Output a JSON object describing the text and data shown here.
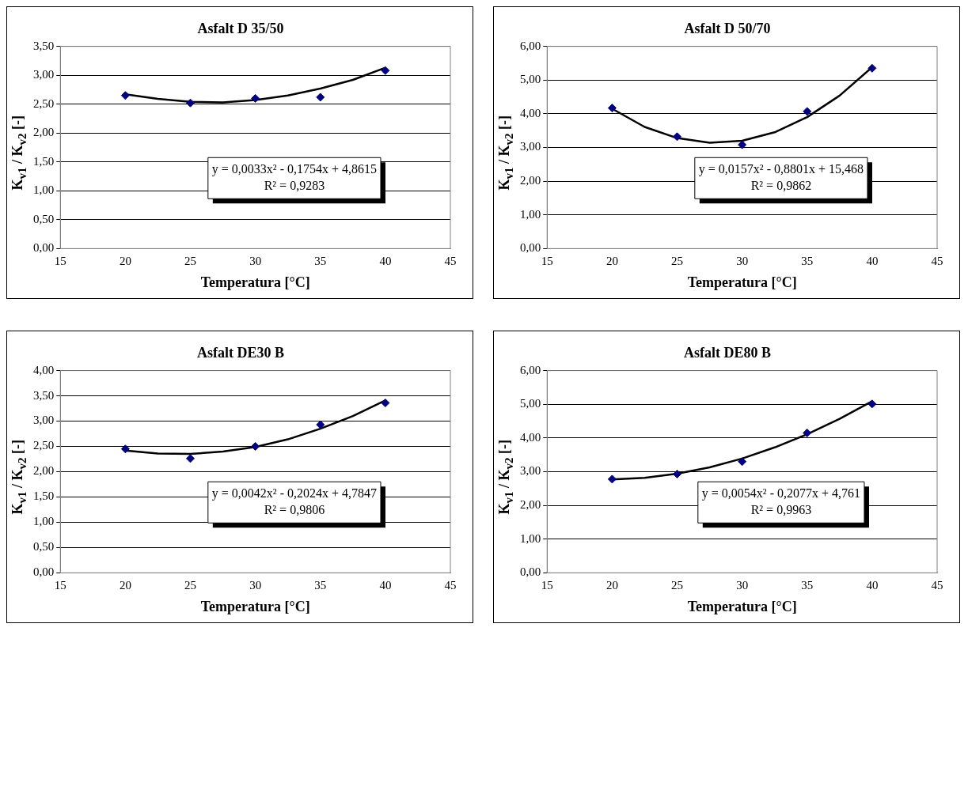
{
  "chart_data": [
    {
      "type": "scatter",
      "title": "Asfalt D 35/50",
      "xlabel": "Temperatura [°C]",
      "ylabel": "K$_{v1}$ / K$_{v2}$ [-]",
      "xlim": [
        15,
        45
      ],
      "xticks": [
        15,
        20,
        25,
        30,
        35,
        40,
        45
      ],
      "ylim": [
        0,
        3.5
      ],
      "yticks": [
        {
          "value": 0,
          "label": "0,00"
        },
        {
          "value": 0.5,
          "label": "0,50"
        },
        {
          "value": 1,
          "label": "1,00"
        },
        {
          "value": 1.5,
          "label": "1,50"
        },
        {
          "value": 2,
          "label": "2,00"
        },
        {
          "value": 2.5,
          "label": "2,50"
        },
        {
          "value": 3,
          "label": "3,00"
        },
        {
          "value": 3.5,
          "label": "3,50"
        }
      ],
      "grid": "y",
      "legend": false,
      "marker": "diamond",
      "annotations": [
        "y = 0,0033x² - 0,1754x + 4,8615",
        "R² = 0,9283"
      ],
      "series": [
        {
          "color": "#000080",
          "x": [
            20,
            25,
            30,
            35,
            40
          ],
          "values": [
            2.65,
            2.52,
            2.6,
            2.62,
            3.08
          ]
        },
        {
          "type": "line",
          "color": "#000000",
          "marker": "none",
          "x": [
            20,
            22.5,
            25,
            27.5,
            30,
            32.5,
            35,
            37.5,
            40
          ],
          "values": [
            2.67,
            2.59,
            2.54,
            2.53,
            2.57,
            2.65,
            2.77,
            2.92,
            3.13
          ]
        }
      ]
    },
    {
      "type": "scatter",
      "title": "Asfalt D 50/70",
      "xlabel": "Temperatura [°C]",
      "ylabel": "K$_{v1}$ / K$_{v2}$ [-]",
      "xlim": [
        15,
        45
      ],
      "xticks": [
        15,
        20,
        25,
        30,
        35,
        40,
        45
      ],
      "ylim": [
        0,
        6
      ],
      "yticks": [
        {
          "value": 0,
          "label": "0,00"
        },
        {
          "value": 1,
          "label": "1,00"
        },
        {
          "value": 2,
          "label": "2,00"
        },
        {
          "value": 3,
          "label": "3,00"
        },
        {
          "value": 4,
          "label": "4,00"
        },
        {
          "value": 5,
          "label": "5,00"
        },
        {
          "value": 6,
          "label": "6,00"
        }
      ],
      "grid": "y",
      "legend": false,
      "marker": "diamond",
      "annotations": [
        "y = 0,0157x² - 0,8801x + 15,468",
        "R² = 0,9862"
      ],
      "series": [
        {
          "color": "#000080",
          "x": [
            20,
            25,
            30,
            35,
            40
          ],
          "values": [
            4.17,
            3.32,
            3.08,
            4.07,
            5.35
          ]
        },
        {
          "type": "line",
          "color": "#000000",
          "marker": "none",
          "x": [
            20,
            22.5,
            25,
            27.5,
            30,
            32.5,
            35,
            37.5,
            40
          ],
          "values": [
            4.15,
            3.61,
            3.28,
            3.14,
            3.2,
            3.45,
            3.9,
            4.54,
            5.38
          ]
        }
      ]
    },
    {
      "type": "scatter",
      "title": "Asfalt DE30 B",
      "xlabel": "Temperatura [°C]",
      "ylabel": "K$_{v1}$ / K$_{v2}$ [-]",
      "xlim": [
        15,
        45
      ],
      "xticks": [
        15,
        20,
        25,
        30,
        35,
        40,
        45
      ],
      "ylim": [
        0,
        4
      ],
      "yticks": [
        {
          "value": 0,
          "label": "0,00"
        },
        {
          "value": 0.5,
          "label": "0,50"
        },
        {
          "value": 1,
          "label": "1,00"
        },
        {
          "value": 1.5,
          "label": "1,50"
        },
        {
          "value": 2,
          "label": "2,00"
        },
        {
          "value": 2.5,
          "label": "2,50"
        },
        {
          "value": 3,
          "label": "3,00"
        },
        {
          "value": 3.5,
          "label": "3,50"
        },
        {
          "value": 4,
          "label": "4,00"
        }
      ],
      "grid": "y",
      "legend": false,
      "marker": "diamond",
      "annotations": [
        "y = 0,0042x² - 0,2024x + 4,7847",
        "R² = 0,9806"
      ],
      "series": [
        {
          "color": "#000080",
          "x": [
            20,
            25,
            30,
            35,
            40
          ],
          "values": [
            2.45,
            2.26,
            2.5,
            2.93,
            3.36
          ]
        },
        {
          "type": "line",
          "color": "#000000",
          "marker": "none",
          "x": [
            20,
            22.5,
            25,
            27.5,
            30,
            32.5,
            35,
            37.5,
            40
          ],
          "values": [
            2.42,
            2.36,
            2.35,
            2.4,
            2.49,
            2.64,
            2.85,
            3.1,
            3.41
          ]
        }
      ]
    },
    {
      "type": "scatter",
      "title": "Asfalt DE80 B",
      "xlabel": "Temperatura [°C]",
      "ylabel": "K$_{v1}$ / K$_{v2}$ [-]",
      "xlim": [
        15,
        45
      ],
      "xticks": [
        15,
        20,
        25,
        30,
        35,
        40,
        45
      ],
      "ylim": [
        0,
        6
      ],
      "yticks": [
        {
          "value": 0,
          "label": "0,00"
        },
        {
          "value": 1,
          "label": "1,00"
        },
        {
          "value": 2,
          "label": "2,00"
        },
        {
          "value": 3,
          "label": "3,00"
        },
        {
          "value": 4,
          "label": "4,00"
        },
        {
          "value": 5,
          "label": "5,00"
        },
        {
          "value": 6,
          "label": "6,00"
        }
      ],
      "grid": "y",
      "legend": false,
      "marker": "diamond",
      "annotations": [
        "y = 0,0054x² - 0,2077x + 4,761",
        "R² = 0,9963"
      ],
      "series": [
        {
          "color": "#000080",
          "x": [
            20,
            25,
            30,
            35,
            40
          ],
          "values": [
            2.78,
            2.93,
            3.3,
            4.15,
            5.01
          ]
        },
        {
          "type": "line",
          "color": "#000000",
          "marker": "none",
          "x": [
            20,
            22.5,
            25,
            27.5,
            30,
            32.5,
            35,
            37.5,
            40
          ],
          "values": [
            2.77,
            2.82,
            2.94,
            3.13,
            3.39,
            3.72,
            4.11,
            4.57,
            5.09
          ]
        }
      ]
    }
  ]
}
